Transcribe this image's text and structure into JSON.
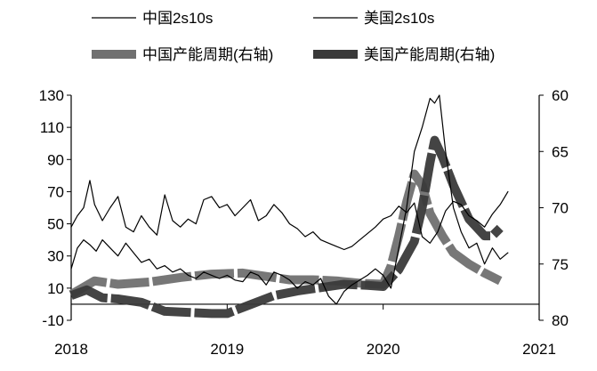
{
  "legend": [
    {
      "label": "中国2s10s",
      "color": "#000000",
      "width": 1.2
    },
    {
      "label": "美国2s10s",
      "color": "#000000",
      "width": 1.2
    },
    {
      "label": "中国产能周期(右轴)",
      "color": "#707070",
      "width": 10
    },
    {
      "label": "美国产能周期(右轴)",
      "color": "#3a3a3a",
      "width": 10
    }
  ],
  "chart_data": {
    "type": "line",
    "title": "",
    "xlabel": "",
    "ylabel": "",
    "x_ticks": [
      "2018",
      "2019",
      "2020",
      "2021"
    ],
    "xlim": [
      2018.0,
      2021.0
    ],
    "y_left": {
      "ticks": [
        130,
        110,
        90,
        70,
        50,
        30,
        10,
        -10
      ],
      "lim": [
        -10,
        130
      ]
    },
    "y_right": {
      "ticks": [
        60,
        65,
        70,
        75,
        80
      ],
      "lim": [
        60,
        80
      ],
      "inverted": true
    },
    "grid": false,
    "legend_position": "top",
    "series": [
      {
        "name": "中国2s10s",
        "axis": "left",
        "style": "thin",
        "color": "#000000",
        "x": [
          2018.0,
          2018.04,
          2018.08,
          2018.12,
          2018.15,
          2018.2,
          2018.25,
          2018.3,
          2018.35,
          2018.4,
          2018.45,
          2018.5,
          2018.55,
          2018.6,
          2018.65,
          2018.7,
          2018.75,
          2018.8,
          2018.85,
          2018.9,
          2018.95,
          2019.0,
          2019.05,
          2019.1,
          2019.15,
          2019.2,
          2019.25,
          2019.3,
          2019.35,
          2019.4,
          2019.45,
          2019.5,
          2019.55,
          2019.6,
          2019.65,
          2019.7,
          2019.75,
          2019.8,
          2019.85,
          2019.9,
          2019.95,
          2020.0,
          2020.05,
          2020.1,
          2020.15,
          2020.2,
          2020.25,
          2020.3,
          2020.35,
          2020.4,
          2020.45,
          2020.5,
          2020.55,
          2020.6,
          2020.65,
          2020.7,
          2020.75,
          2020.8
        ],
        "values": [
          48,
          55,
          60,
          77,
          62,
          52,
          60,
          67,
          48,
          45,
          55,
          48,
          43,
          68,
          52,
          48,
          53,
          50,
          65,
          67,
          60,
          62,
          55,
          60,
          65,
          52,
          55,
          62,
          57,
          50,
          47,
          42,
          45,
          40,
          38,
          36,
          34,
          36,
          40,
          44,
          48,
          53,
          55,
          61,
          57,
          63,
          42,
          38,
          45,
          58,
          64,
          62,
          55,
          52,
          48,
          56,
          62,
          70
        ]
      },
      {
        "name": "美国2s10s",
        "axis": "left",
        "style": "thin",
        "color": "#000000",
        "x": [
          2018.0,
          2018.04,
          2018.08,
          2018.12,
          2018.16,
          2018.2,
          2018.25,
          2018.3,
          2018.35,
          2018.4,
          2018.45,
          2018.5,
          2018.55,
          2018.6,
          2018.65,
          2018.7,
          2018.75,
          2018.8,
          2018.85,
          2018.9,
          2018.95,
          2019.0,
          2019.05,
          2019.1,
          2019.15,
          2019.2,
          2019.25,
          2019.3,
          2019.35,
          2019.4,
          2019.45,
          2019.5,
          2019.55,
          2019.6,
          2019.65,
          2019.7,
          2019.75,
          2019.8,
          2019.85,
          2019.9,
          2019.95,
          2020.0,
          2020.05,
          2020.1,
          2020.15,
          2020.2,
          2020.25,
          2020.3,
          2020.33,
          2020.36,
          2020.4,
          2020.45,
          2020.5,
          2020.55,
          2020.6,
          2020.65,
          2020.7,
          2020.75,
          2020.8
        ],
        "values": [
          22,
          35,
          40,
          37,
          33,
          40,
          35,
          30,
          38,
          32,
          26,
          28,
          22,
          24,
          20,
          22,
          18,
          16,
          20,
          18,
          16,
          18,
          15,
          14,
          20,
          18,
          12,
          20,
          18,
          15,
          10,
          14,
          12,
          16,
          5,
          0,
          8,
          12,
          15,
          18,
          22,
          18,
          10,
          35,
          60,
          95,
          110,
          128,
          125,
          130,
          95,
          60,
          45,
          35,
          38,
          25,
          35,
          28,
          32
        ]
      },
      {
        "name": "中国产能周期(右轴)",
        "axis": "right",
        "style": "thick",
        "color": "#707070",
        "x": [
          2018.0,
          2018.15,
          2018.3,
          2018.5,
          2018.7,
          2018.9,
          2019.1,
          2019.25,
          2019.4,
          2019.55,
          2019.7,
          2019.85,
          2020.0,
          2020.05,
          2020.1,
          2020.15,
          2020.2,
          2020.25,
          2020.3,
          2020.38,
          2020.45,
          2020.55,
          2020.65,
          2020.75
        ],
        "values": [
          77.7,
          76.5,
          76.8,
          76.6,
          76.2,
          75.9,
          75.8,
          76.1,
          76.4,
          76.4,
          76.5,
          76.7,
          76.8,
          75.2,
          72.5,
          69.5,
          67.0,
          68.0,
          70.5,
          72.5,
          74.0,
          75.0,
          75.8,
          76.5
        ]
      },
      {
        "name": "美国产能周期(右轴)",
        "axis": "right",
        "style": "thick",
        "color": "#3a3a3a",
        "x": [
          2018.0,
          2018.1,
          2018.2,
          2018.3,
          2018.45,
          2018.6,
          2018.75,
          2018.9,
          2019.0,
          2019.15,
          2019.3,
          2019.45,
          2019.6,
          2019.75,
          2019.9,
          2020.0,
          2020.1,
          2020.2,
          2020.25,
          2020.3,
          2020.33,
          2020.38,
          2020.45,
          2020.55,
          2020.65,
          2020.7,
          2020.75
        ],
        "values": [
          77.8,
          77.3,
          78.0,
          78.1,
          78.4,
          79.2,
          79.3,
          79.4,
          79.4,
          78.6,
          77.8,
          77.4,
          77.1,
          76.8,
          76.9,
          77.0,
          75.5,
          73.0,
          70.0,
          66.0,
          64.0,
          65.5,
          68.0,
          71.0,
          72.5,
          72.5,
          71.8
        ]
      }
    ]
  }
}
